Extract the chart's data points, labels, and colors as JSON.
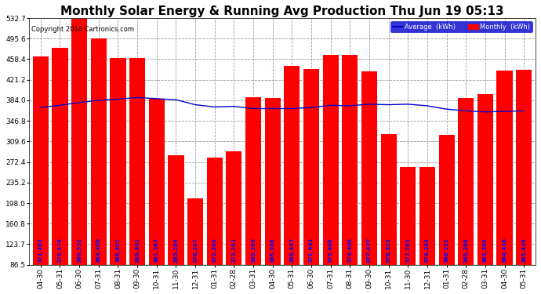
{
  "title": "Monthly Solar Energy & Running Avg Production Thu Jun 19 05:13",
  "copyright": "Copyright 2014 Cartronics.com",
  "categories": [
    "04-30",
    "05-31",
    "06-30",
    "07-31",
    "08-31",
    "09-30",
    "10-31",
    "11-30",
    "12-31",
    "01-31",
    "02-28",
    "03-31",
    "04-30",
    "05-31",
    "06-30",
    "07-31",
    "08-31",
    "09-30",
    "10-31",
    "11-30",
    "12-31",
    "01-31",
    "02-28",
    "03-31",
    "04-30",
    "05-31"
  ],
  "monthly_values": [
    463,
    479,
    532,
    496,
    461,
    461,
    387,
    284,
    207,
    280,
    291,
    390,
    388,
    447,
    441,
    466,
    466,
    437,
    323,
    263,
    263,
    322,
    388,
    395,
    438,
    439
  ],
  "avg_values": [
    371,
    375,
    380,
    384,
    386,
    389,
    387,
    385,
    376,
    372,
    373,
    369,
    369,
    369,
    371,
    375,
    374,
    377,
    376,
    377,
    374,
    368,
    365,
    363,
    364,
    365
  ],
  "bar_color": "#ff0000",
  "avg_line_color": "#0000cc",
  "label_color_white": "#ffffff",
  "label_color_blue": "#0000ff",
  "background_color": "#ffffff",
  "plot_bg_color": "#ffffff",
  "grid_color": "#999999",
  "ylim_min": 86.5,
  "ylim_max": 532.7,
  "yticks": [
    86.5,
    123.7,
    160.8,
    198.0,
    235.2,
    272.4,
    309.6,
    346.8,
    384.0,
    421.2,
    458.4,
    495.6,
    532.7
  ],
  "legend_avg_label": "Average  (kWh)",
  "legend_monthly_label": "Monthly  (kWh)",
  "title_fontsize": 11,
  "tick_fontsize": 6.5,
  "label_fontsize": 5.0,
  "copyright_fontsize": 6.0
}
